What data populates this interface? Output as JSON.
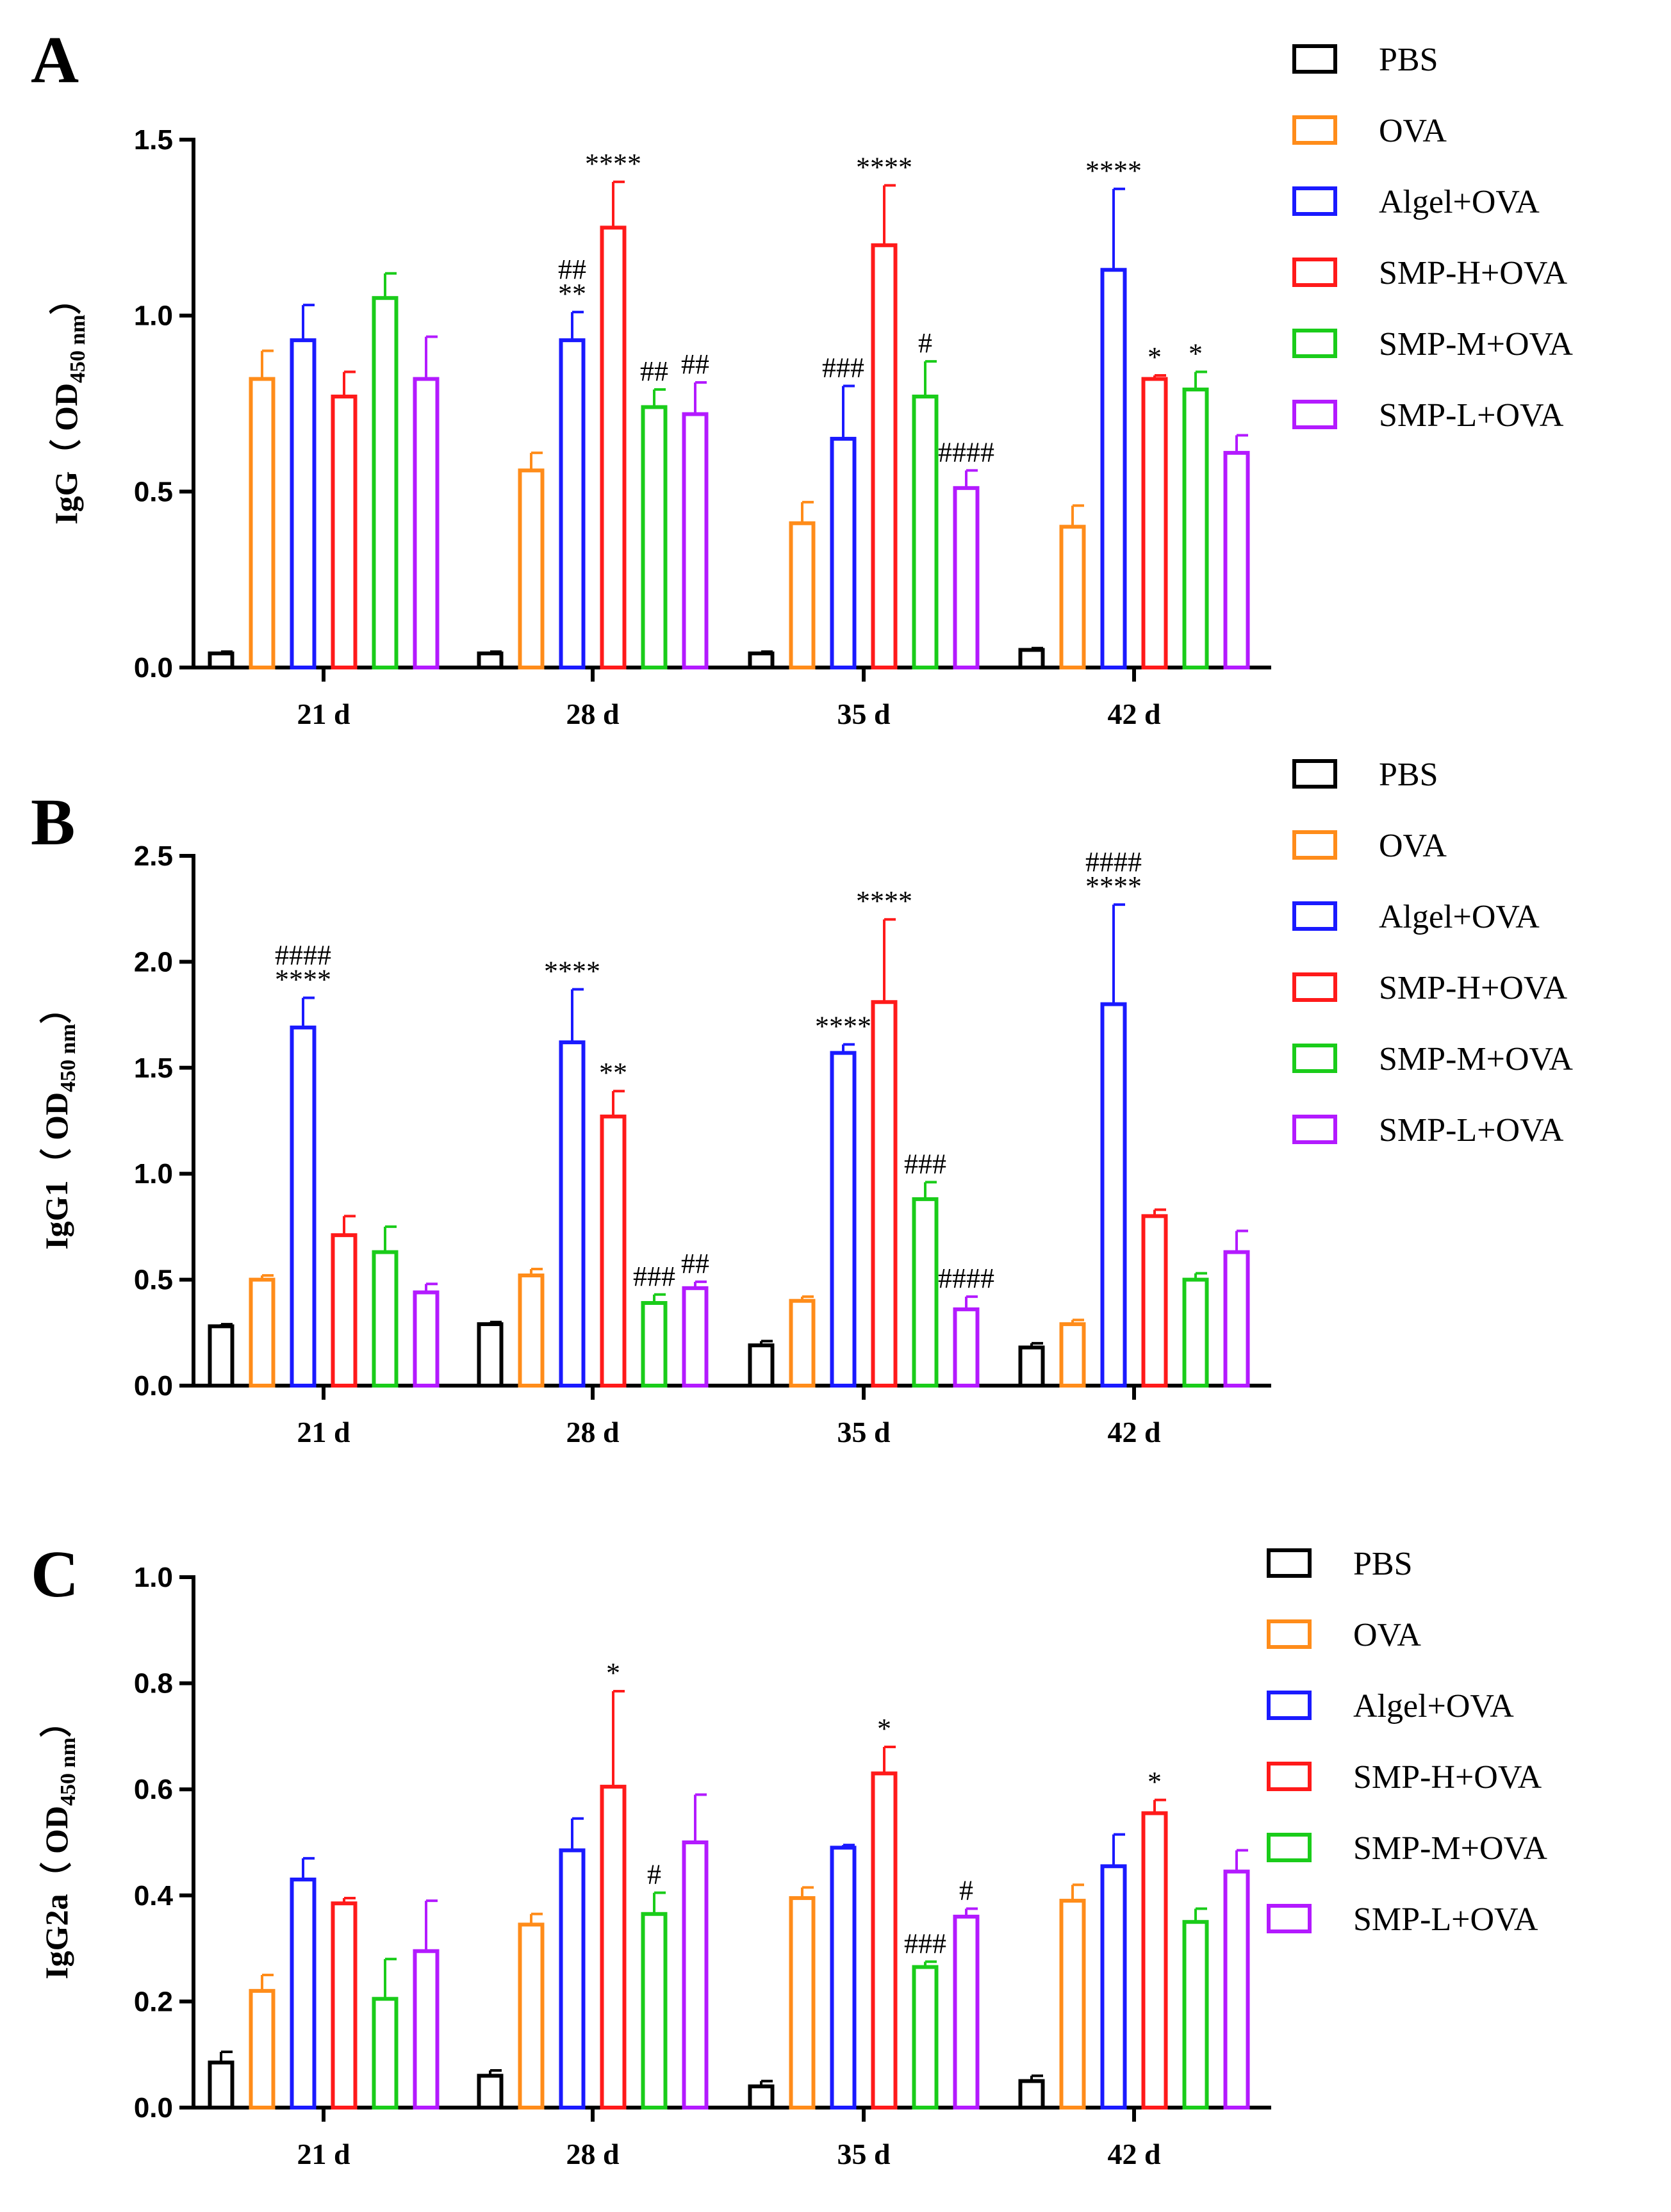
{
  "colors": {
    "PBS": "#000000",
    "OVA": "#ff8c1a",
    "Algel+OVA": "#1a1aff",
    "SMP-H+OVA": "#ff1a1a",
    "SMP-M+OVA": "#1acc1a",
    "SMP-L+OVA": "#b31aff"
  },
  "chart_data": [
    {
      "panel": "A",
      "type": "bar",
      "ylabel_main": "IgG（ OD",
      "ylabel_sub": "450 nm",
      "ylabel_end": "）",
      "ylim": [
        0,
        1.5
      ],
      "yticks": [
        "0.0",
        "0.5",
        "1.0",
        "1.5"
      ],
      "categories": [
        "21 d",
        "28 d",
        "35 d",
        "42 d"
      ],
      "legend": [
        "PBS",
        "OVA",
        "Algel+OVA",
        "SMP-H+OVA",
        "SMP-M+OVA",
        "SMP-L+OVA"
      ],
      "series": [
        {
          "name": "PBS",
          "values": [
            0.04,
            0.04,
            0.04,
            0.05
          ],
          "errors": [
            0.005,
            0.005,
            0.005,
            0.005
          ],
          "annotations": [
            "",
            "",
            "",
            ""
          ]
        },
        {
          "name": "OVA",
          "values": [
            0.82,
            0.56,
            0.41,
            0.4
          ],
          "errors": [
            0.08,
            0.05,
            0.06,
            0.06
          ],
          "annotations": [
            "",
            "",
            "",
            ""
          ]
        },
        {
          "name": "Algel+OVA",
          "values": [
            0.93,
            0.93,
            0.65,
            1.13
          ],
          "errors": [
            0.1,
            0.08,
            0.15,
            0.23
          ],
          "annotations": [
            "",
            "##\n**",
            "###",
            "****"
          ]
        },
        {
          "name": "SMP-H+OVA",
          "values": [
            0.77,
            1.25,
            1.2,
            0.82
          ],
          "errors": [
            0.07,
            0.13,
            0.17,
            0.01
          ],
          "annotations": [
            "",
            "****",
            "****",
            "*"
          ]
        },
        {
          "name": "SMP-M+OVA",
          "values": [
            1.05,
            0.74,
            0.77,
            0.79
          ],
          "errors": [
            0.07,
            0.05,
            0.1,
            0.05
          ],
          "annotations": [
            "",
            "##",
            "#",
            "*"
          ]
        },
        {
          "name": "SMP-L+OVA",
          "values": [
            0.82,
            0.72,
            0.51,
            0.61
          ],
          "errors": [
            0.12,
            0.09,
            0.05,
            0.05
          ],
          "annotations": [
            "",
            "##",
            "####",
            ""
          ]
        }
      ]
    },
    {
      "panel": "B",
      "type": "bar",
      "ylabel_main": "IgG1（ OD",
      "ylabel_sub": "450 nm",
      "ylabel_end": "）",
      "ylim": [
        0,
        2.5
      ],
      "yticks": [
        "0.0",
        "0.5",
        "1.0",
        "1.5",
        "2.0",
        "2.5"
      ],
      "categories": [
        "21 d",
        "28 d",
        "35 d",
        "42 d"
      ],
      "legend": [
        "PBS",
        "OVA",
        "Algel+OVA",
        "SMP-H+OVA",
        "SMP-M+OVA",
        "SMP-L+OVA"
      ],
      "series": [
        {
          "name": "PBS",
          "values": [
            0.28,
            0.29,
            0.19,
            0.18
          ],
          "errors": [
            0.01,
            0.01,
            0.02,
            0.02
          ],
          "annotations": [
            "",
            "",
            "",
            ""
          ]
        },
        {
          "name": "OVA",
          "values": [
            0.5,
            0.52,
            0.4,
            0.29
          ],
          "errors": [
            0.02,
            0.03,
            0.02,
            0.02
          ],
          "annotations": [
            "",
            "",
            "",
            ""
          ]
        },
        {
          "name": "Algel+OVA",
          "values": [
            1.69,
            1.62,
            1.57,
            1.8
          ],
          "errors": [
            0.14,
            0.25,
            0.04,
            0.47
          ],
          "annotations": [
            "####\n****",
            "****",
            "****",
            "####\n****"
          ]
        },
        {
          "name": "SMP-H+OVA",
          "values": [
            0.71,
            1.27,
            1.81,
            0.8
          ],
          "errors": [
            0.09,
            0.12,
            0.39,
            0.03
          ],
          "annotations": [
            "",
            "**",
            "****",
            ""
          ]
        },
        {
          "name": "SMP-M+OVA",
          "values": [
            0.63,
            0.39,
            0.88,
            0.5
          ],
          "errors": [
            0.12,
            0.04,
            0.08,
            0.03
          ],
          "annotations": [
            "",
            "###",
            "###",
            ""
          ]
        },
        {
          "name": "SMP-L+OVA",
          "values": [
            0.44,
            0.46,
            0.36,
            0.63
          ],
          "errors": [
            0.04,
            0.03,
            0.06,
            0.1
          ],
          "annotations": [
            "",
            "##",
            "####",
            ""
          ]
        }
      ]
    },
    {
      "panel": "C",
      "type": "bar",
      "ylabel_main": "IgG2a（ OD",
      "ylabel_sub": "450 nm",
      "ylabel_end": "）",
      "ylim": [
        0,
        1.0
      ],
      "yticks": [
        "0.0",
        "0.2",
        "0.4",
        "0.6",
        "0.8",
        "1.0"
      ],
      "categories": [
        "21 d",
        "28 d",
        "35 d",
        "42 d"
      ],
      "legend": [
        "PBS",
        "OVA",
        "Algel+OVA",
        "SMP-H+OVA",
        "SMP-M+OVA",
        "SMP-L+OVA"
      ],
      "series": [
        {
          "name": "PBS",
          "values": [
            0.085,
            0.06,
            0.04,
            0.05
          ],
          "errors": [
            0.02,
            0.01,
            0.01,
            0.01
          ],
          "annotations": [
            "",
            "",
            "",
            ""
          ]
        },
        {
          "name": "OVA",
          "values": [
            0.22,
            0.345,
            0.395,
            0.39
          ],
          "errors": [
            0.03,
            0.02,
            0.02,
            0.03
          ],
          "annotations": [
            "",
            "",
            "",
            ""
          ]
        },
        {
          "name": "Algel+OVA",
          "values": [
            0.43,
            0.485,
            0.49,
            0.455
          ],
          "errors": [
            0.04,
            0.06,
            0.005,
            0.06
          ],
          "annotations": [
            "",
            "",
            "",
            ""
          ]
        },
        {
          "name": "SMP-H+OVA",
          "values": [
            0.385,
            0.605,
            0.63,
            0.555
          ],
          "errors": [
            0.01,
            0.18,
            0.05,
            0.025
          ],
          "annotations": [
            "",
            "*",
            "*",
            "*"
          ]
        },
        {
          "name": "SMP-M+OVA",
          "values": [
            0.205,
            0.365,
            0.265,
            0.35
          ],
          "errors": [
            0.075,
            0.04,
            0.01,
            0.025
          ],
          "annotations": [
            "",
            "#",
            "###",
            ""
          ]
        },
        {
          "name": "SMP-L+OVA",
          "values": [
            0.295,
            0.5,
            0.36,
            0.445
          ],
          "errors": [
            0.095,
            0.09,
            0.015,
            0.04
          ],
          "annotations": [
            "",
            "",
            "#",
            ""
          ]
        }
      ]
    }
  ]
}
